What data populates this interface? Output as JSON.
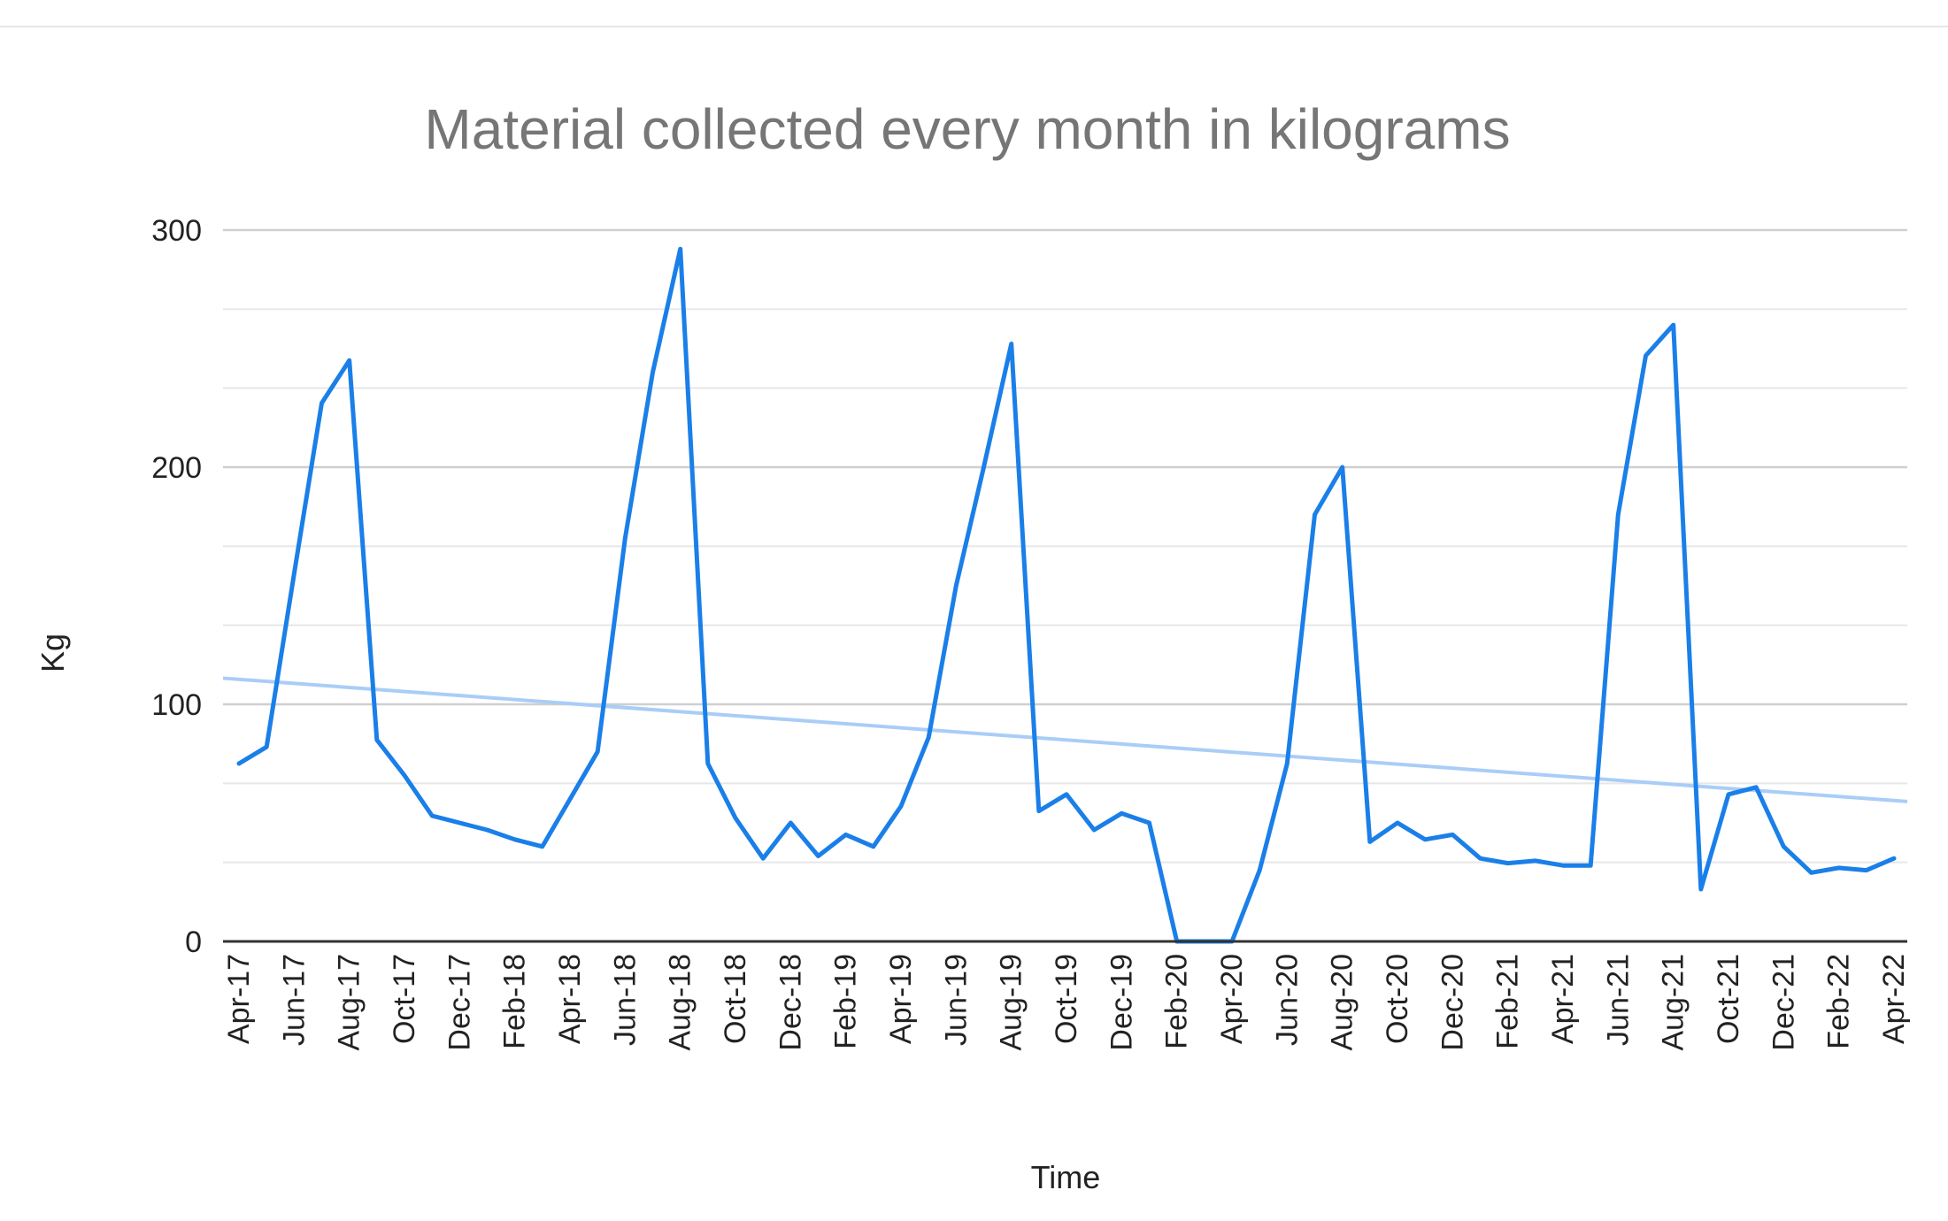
{
  "chart_data": {
    "type": "line",
    "title": "Material collected every month in kilograms",
    "xlabel": "Time",
    "ylabel": "Kg",
    "ylim": [
      0,
      300
    ],
    "yticks": [
      0,
      100,
      200,
      300
    ],
    "grid": true,
    "x": [
      "Apr-17",
      "May-17",
      "Jun-17",
      "Jul-17",
      "Aug-17",
      "Sep-17",
      "Oct-17",
      "Nov-17",
      "Dec-17",
      "Jan-18",
      "Feb-18",
      "Mar-18",
      "Apr-18",
      "May-18",
      "Jun-18",
      "Jul-18",
      "Aug-18",
      "Sep-18",
      "Oct-18",
      "Nov-18",
      "Dec-18",
      "Jan-19",
      "Feb-19",
      "Mar-19",
      "Apr-19",
      "May-19",
      "Jun-19",
      "Jul-19",
      "Aug-19",
      "Sep-19",
      "Oct-19",
      "Nov-19",
      "Dec-19",
      "Jan-20",
      "Feb-20",
      "Mar-20",
      "Apr-20",
      "May-20",
      "Jun-20",
      "Jul-20",
      "Aug-20",
      "Sep-20",
      "Oct-20",
      "Nov-20",
      "Dec-20",
      "Jan-21",
      "Feb-21",
      "Mar-21",
      "Apr-21",
      "May-21",
      "Jun-21",
      "Jul-21",
      "Aug-21",
      "Sep-21",
      "Oct-21",
      "Nov-21",
      "Dec-21",
      "Jan-22",
      "Feb-22",
      "Mar-22",
      "Apr-22"
    ],
    "xtick_labels": [
      "Apr-17",
      "Jun-17",
      "Aug-17",
      "Oct-17",
      "Dec-17",
      "Feb-18",
      "Apr-18",
      "Jun-18",
      "Aug-18",
      "Oct-18",
      "Dec-18",
      "Feb-19",
      "Apr-19",
      "Jun-19",
      "Aug-19",
      "Oct-19",
      "Dec-19",
      "Feb-20",
      "Apr-20",
      "Jun-20",
      "Aug-20",
      "Oct-20",
      "Dec-20",
      "Feb-21",
      "Apr-21",
      "Jun-21",
      "Aug-21",
      "Oct-21",
      "Dec-21",
      "Feb-22",
      "Apr-22"
    ],
    "series": [
      {
        "values": [
          75,
          82,
          155,
          227,
          245,
          85,
          70,
          53,
          50,
          47,
          43,
          40,
          60,
          80,
          170,
          240,
          292,
          75,
          52,
          35,
          50,
          36,
          45,
          40,
          57,
          86,
          150,
          200,
          252,
          55,
          62,
          47,
          54,
          50,
          0,
          0,
          0,
          30,
          75,
          180,
          200,
          42,
          50,
          43,
          45,
          35,
          33,
          34,
          32,
          32,
          180,
          247,
          260,
          22,
          62,
          65,
          40,
          29,
          31,
          30,
          35
        ],
        "color": "#1a7fe8"
      },
      {
        "type": "trendline",
        "values_start_end": [
          111,
          59
        ],
        "color": "#a9cdf7"
      }
    ]
  }
}
